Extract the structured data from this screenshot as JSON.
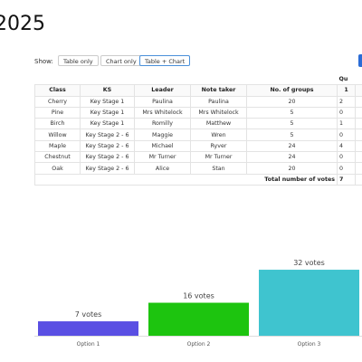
{
  "header": {
    "title": "2025"
  },
  "controls": {
    "label": "Show:",
    "buttons": [
      "Table only",
      "Chart only",
      "Table + Chart"
    ],
    "selected": 2
  },
  "table": {
    "group_header": "Qu",
    "columns": [
      "Class",
      "KS",
      "Leader",
      "Note taker",
      "No. of groups",
      "1"
    ],
    "rows": [
      [
        "Cherry",
        "Key Stage 1",
        "Paulina",
        "Paulina",
        20,
        2
      ],
      [
        "Pine",
        "Key Stage 1",
        "Mrs Whitelock",
        "Mrs Whitelock",
        5,
        0
      ],
      [
        "Birch",
        "Key Stage 1",
        "Romilly",
        "Matthew",
        5,
        1
      ],
      [
        "Willow",
        "Key Stage 2 - 6",
        "Maggie",
        "Wren",
        5,
        0
      ],
      [
        "Maple",
        "Key Stage 2 - 6",
        "Michael",
        "Ryver",
        24,
        4
      ],
      [
        "Chestnut",
        "Key Stage 2 - 6",
        "Mr Turner",
        "Mr Turner",
        24,
        0
      ],
      [
        "Oak",
        "Key Stage 2 - 6",
        "Alice",
        "Stan",
        20,
        0
      ]
    ],
    "total": {
      "label": "Total number of votes",
      "value": 7
    }
  },
  "chart": {
    "type": "bar",
    "categories": [
      "Option 1",
      "Option 2",
      "Option 3"
    ],
    "values": [
      7,
      16,
      32
    ],
    "value_labels": [
      "7 votes",
      "16 votes",
      "32 votes"
    ],
    "colors": [
      "#5a4fe3",
      "#1dc40f",
      "#3fc4cf"
    ]
  }
}
